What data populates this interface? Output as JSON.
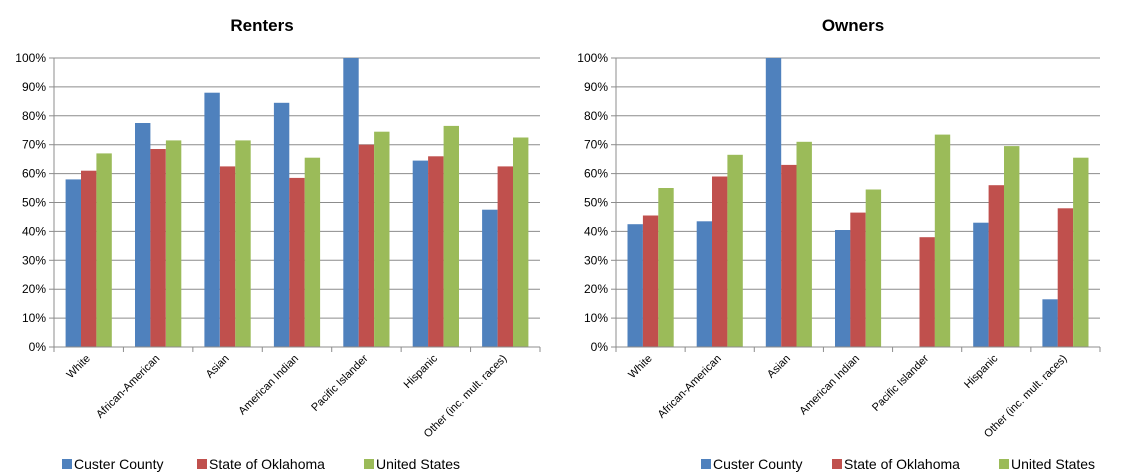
{
  "series_colors": [
    "#4f81bd",
    "#c0504d",
    "#9bbb59"
  ],
  "chart_data": [
    {
      "type": "bar",
      "title": "Renters",
      "xlabel": "",
      "ylabel": "",
      "categories": [
        "White",
        "African-American",
        "Asian",
        "American Indian",
        "Pacific Islander",
        "Hispanic",
        "Other (inc. mult. races)"
      ],
      "series": [
        {
          "name": "Custer County",
          "values": [
            58,
            77.5,
            88,
            84.5,
            100,
            64.5,
            47.5
          ]
        },
        {
          "name": "State of Oklahoma",
          "values": [
            61,
            68.5,
            62.5,
            58.5,
            70,
            66,
            62.5
          ]
        },
        {
          "name": "United States",
          "values": [
            67,
            71.5,
            71.5,
            65.5,
            74.5,
            76.5,
            72.5
          ]
        }
      ],
      "ylim": [
        0,
        100
      ],
      "yticks": [
        "0%",
        "10%",
        "20%",
        "30%",
        "40%",
        "50%",
        "60%",
        "70%",
        "80%",
        "90%",
        "100%"
      ],
      "grid": true,
      "legend": "bottom"
    },
    {
      "type": "bar",
      "title": "Owners",
      "xlabel": "",
      "ylabel": "",
      "categories": [
        "White",
        "African-American",
        "Asian",
        "American Indian",
        "Pacific Islander",
        "Hispanic",
        "Other (inc. mult. races)"
      ],
      "series": [
        {
          "name": "Custer County",
          "values": [
            42.5,
            43.5,
            100,
            40.5,
            0,
            43,
            16.5
          ]
        },
        {
          "name": "State of Oklahoma",
          "values": [
            45.5,
            59,
            63,
            46.5,
            38,
            56,
            48
          ]
        },
        {
          "name": "United States",
          "values": [
            55,
            66.5,
            71,
            54.5,
            73.5,
            69.5,
            65.5
          ]
        }
      ],
      "ylim": [
        0,
        100
      ],
      "yticks": [
        "0%",
        "10%",
        "20%",
        "30%",
        "40%",
        "50%",
        "60%",
        "70%",
        "80%",
        "90%",
        "100%"
      ],
      "grid": true,
      "legend": "bottom"
    }
  ]
}
